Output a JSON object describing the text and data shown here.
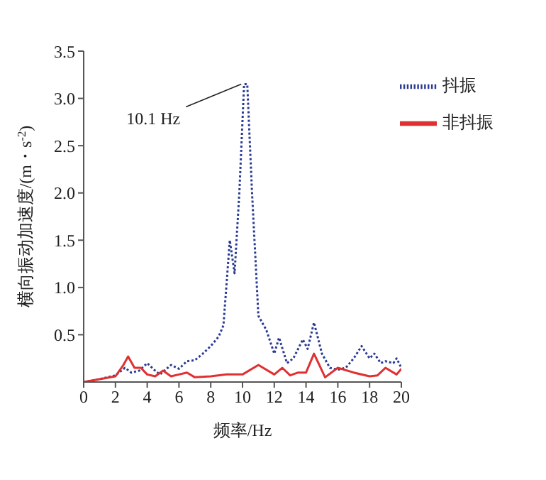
{
  "chart_data": {
    "type": "line",
    "xlabel": "频率/Hz",
    "ylabel": "横向振动加速度/(m・s$^{-2}$)",
    "xlim": [
      0,
      20
    ],
    "xticks": [
      0,
      2,
      4,
      6,
      8,
      10,
      12,
      14,
      16,
      18,
      20
    ],
    "ylim": [
      0,
      3.5
    ],
    "yticks": [
      0.5,
      {
        "value": 1,
        "label": "1.0"
      },
      1.5,
      {
        "value": 2,
        "label": "2.0"
      },
      2.5,
      {
        "value": 3,
        "label": "3.0"
      },
      3.5
    ],
    "legend": "top right",
    "marker": "none",
    "annotations": [
      {
        "text": "10.1 Hz",
        "x": 10.1,
        "y": 3.15
      }
    ],
    "series": [
      {
        "name": "抖振",
        "color": "#2b3b93",
        "line_style": "dotted",
        "x": [
          0,
          1,
          2,
          2.6,
          3,
          3.5,
          4,
          4.5,
          4.8,
          5.5,
          6,
          6.5,
          7,
          7.5,
          8,
          8.5,
          8.8,
          9.2,
          9.5,
          9.8,
          10.1,
          10.3,
          10.6,
          11,
          11.5,
          12,
          12.3,
          12.8,
          13.2,
          13.8,
          14.1,
          14.5,
          15,
          15.5,
          16,
          16.5,
          17,
          17.5,
          18,
          18.3,
          18.7,
          19,
          19.5,
          19.7,
          20
        ],
        "values": [
          0,
          0.03,
          0.07,
          0.15,
          0.1,
          0.12,
          0.2,
          0.12,
          0.08,
          0.18,
          0.14,
          0.22,
          0.23,
          0.3,
          0.38,
          0.48,
          0.6,
          1.5,
          1.15,
          2.0,
          3.15,
          3.15,
          2.0,
          0.7,
          0.55,
          0.3,
          0.47,
          0.2,
          0.25,
          0.45,
          0.35,
          0.63,
          0.3,
          0.15,
          0.13,
          0.15,
          0.25,
          0.38,
          0.25,
          0.3,
          0.2,
          0.22,
          0.2,
          0.25,
          0.15
        ]
      },
      {
        "name": "非抖振",
        "color": "#e03030",
        "line_style": "solid",
        "x": [
          0,
          1,
          2,
          2.5,
          2.8,
          3.2,
          3.6,
          4,
          4.5,
          5,
          5.5,
          6,
          6.5,
          7,
          8,
          9,
          10,
          11,
          12,
          12.5,
          13,
          13.5,
          14,
          14.5,
          15.2,
          16,
          17,
          18,
          18.5,
          19,
          19.7,
          20
        ],
        "values": [
          0,
          0.03,
          0.06,
          0.18,
          0.27,
          0.15,
          0.15,
          0.08,
          0.06,
          0.12,
          0.06,
          0.08,
          0.1,
          0.05,
          0.06,
          0.08,
          0.08,
          0.18,
          0.08,
          0.15,
          0.07,
          0.1,
          0.1,
          0.3,
          0.05,
          0.15,
          0.1,
          0.06,
          0.07,
          0.15,
          0.08,
          0.14
        ]
      }
    ]
  }
}
